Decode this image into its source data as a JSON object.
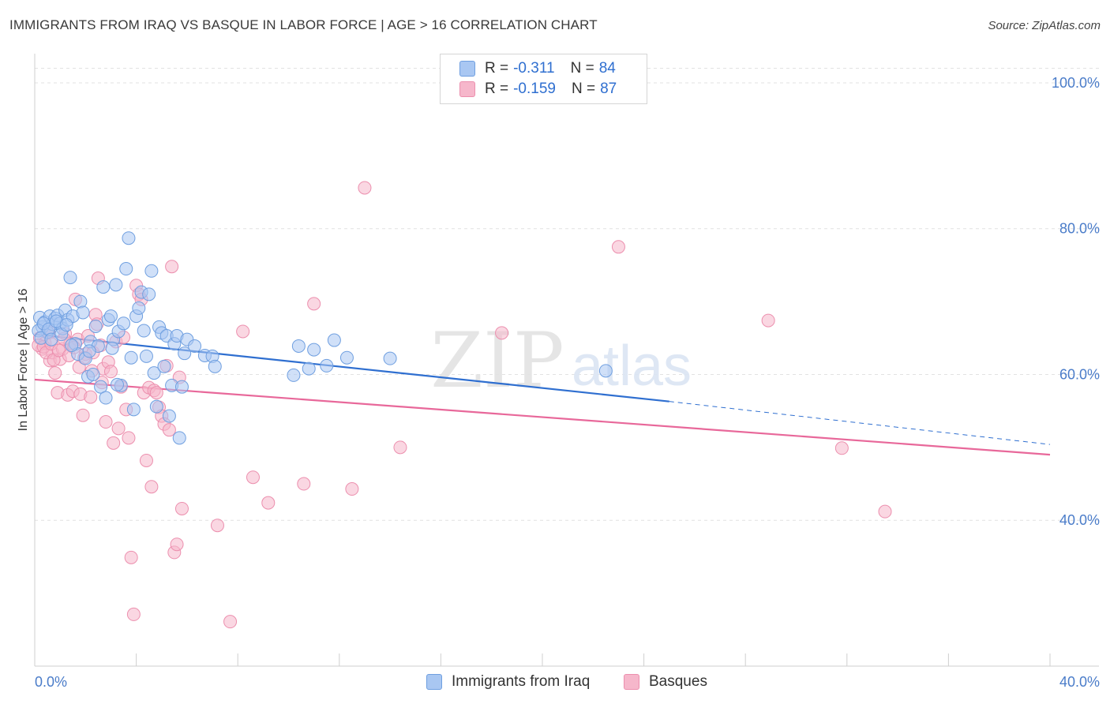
{
  "header": {
    "title": "IMMIGRANTS FROM IRAQ VS BASQUE IN LABOR FORCE | AGE > 16 CORRELATION CHART",
    "source": "Source: ZipAtlas.com"
  },
  "watermark": {
    "zip": "ZIP",
    "atlas": "atlas"
  },
  "legend": {
    "rows": [
      {
        "r_label": "R =",
        "r_value": "-0.311",
        "n_label": "N =",
        "n_value": "84",
        "color": "#a9c7f2"
      },
      {
        "r_label": "R =",
        "r_value": "-0.159",
        "n_label": "N =",
        "n_value": "87",
        "color": "#f6b7cb"
      }
    ]
  },
  "bottom_legend": {
    "series1": "Immigrants from Iraq",
    "series2": "Basques"
  },
  "colors": {
    "iraq_fill": "#a9c7f2",
    "iraq_stroke": "#6f9fe0",
    "iraq_line": "#2f6fd0",
    "basque_fill": "#f6b7cb",
    "basque_stroke": "#ec8fae",
    "basque_line": "#e8689a",
    "tick": "#4a7cc9",
    "grid": "#e2e2e2"
  },
  "chart_data": {
    "type": "scatter",
    "title": "IMMIGRANTS FROM IRAQ VS BASQUE IN LABOR FORCE | AGE > 16 CORRELATION CHART",
    "xlabel": "",
    "ylabel": "In Labor Force | Age > 16",
    "xlim": [
      0,
      40
    ],
    "ylim": [
      20,
      104
    ],
    "x_tick_labels": [
      {
        "value": 0,
        "label": "0.0%"
      },
      {
        "value": 40,
        "label": "40.0%"
      }
    ],
    "y_tick_labels": [
      {
        "value": 100,
        "label": "100.0%"
      },
      {
        "value": 80,
        "label": "80.0%"
      },
      {
        "value": 60,
        "label": "60.0%"
      },
      {
        "value": 40,
        "label": "40.0%"
      }
    ],
    "y_gridlines": [
      102,
      100,
      80,
      60,
      40
    ],
    "series": [
      {
        "name": "Immigrants from Iraq",
        "R": -0.311,
        "N": 84,
        "trend": {
          "x0": 0,
          "y0": 65.5,
          "x1": 25,
          "y1": 56.3,
          "dash_to_x": 40,
          "dash_to_y": 50.4
        },
        "points": [
          [
            0.2,
            67.8
          ],
          [
            0.3,
            66.5
          ],
          [
            0.4,
            67.2
          ],
          [
            0.5,
            65.8
          ],
          [
            0.6,
            68.0
          ],
          [
            0.7,
            66.9
          ],
          [
            0.8,
            67.7
          ],
          [
            0.9,
            68.1
          ],
          [
            1.0,
            67.0
          ],
          [
            1.1,
            66.3
          ],
          [
            1.2,
            68.8
          ],
          [
            1.3,
            67.5
          ],
          [
            1.4,
            73.3
          ],
          [
            1.5,
            68.0
          ],
          [
            1.6,
            64.2
          ],
          [
            1.7,
            62.8
          ],
          [
            1.8,
            70.0
          ],
          [
            1.9,
            68.5
          ],
          [
            2.0,
            62.2
          ],
          [
            2.1,
            59.7
          ],
          [
            2.2,
            64.5
          ],
          [
            2.3,
            60.0
          ],
          [
            2.4,
            66.6
          ],
          [
            2.5,
            63.9
          ],
          [
            2.6,
            58.3
          ],
          [
            2.7,
            72.0
          ],
          [
            2.8,
            56.8
          ],
          [
            2.9,
            67.5
          ],
          [
            3.0,
            68.0
          ],
          [
            3.1,
            64.8
          ],
          [
            3.2,
            72.3
          ],
          [
            3.3,
            65.9
          ],
          [
            3.4,
            58.5
          ],
          [
            3.5,
            67.0
          ],
          [
            3.6,
            74.5
          ],
          [
            3.7,
            78.7
          ],
          [
            3.8,
            62.3
          ],
          [
            3.9,
            55.2
          ],
          [
            4.0,
            68.0
          ],
          [
            4.1,
            69.1
          ],
          [
            4.2,
            71.3
          ],
          [
            4.3,
            66.0
          ],
          [
            4.4,
            62.5
          ],
          [
            4.5,
            71.0
          ],
          [
            4.6,
            74.2
          ],
          [
            4.7,
            60.2
          ],
          [
            4.8,
            55.6
          ],
          [
            4.9,
            66.5
          ],
          [
            5.0,
            65.7
          ],
          [
            5.1,
            61.1
          ],
          [
            5.2,
            65.3
          ],
          [
            5.3,
            54.3
          ],
          [
            5.4,
            58.5
          ],
          [
            5.5,
            64.2
          ],
          [
            5.6,
            65.3
          ],
          [
            5.7,
            51.3
          ],
          [
            5.8,
            58.3
          ],
          [
            5.9,
            62.9
          ],
          [
            6.0,
            64.8
          ],
          [
            6.3,
            63.9
          ],
          [
            6.7,
            62.6
          ],
          [
            7.0,
            62.5
          ],
          [
            7.1,
            61.1
          ],
          [
            10.2,
            59.9
          ],
          [
            10.4,
            63.9
          ],
          [
            10.8,
            60.8
          ],
          [
            11.0,
            63.4
          ],
          [
            11.5,
            61.2
          ],
          [
            11.8,
            64.7
          ],
          [
            12.3,
            62.3
          ],
          [
            14.0,
            62.2
          ],
          [
            22.5,
            60.5
          ],
          [
            0.15,
            66.0
          ],
          [
            0.25,
            65.0
          ],
          [
            0.35,
            67.0
          ],
          [
            0.55,
            66.2
          ],
          [
            0.65,
            64.8
          ],
          [
            0.85,
            67.3
          ],
          [
            1.05,
            65.5
          ],
          [
            1.25,
            66.8
          ],
          [
            1.45,
            64.0
          ],
          [
            2.15,
            63.2
          ],
          [
            3.05,
            63.6
          ],
          [
            3.25,
            58.6
          ]
        ]
      },
      {
        "name": "Basques",
        "R": -0.159,
        "N": 87,
        "trend": {
          "x0": 0,
          "y0": 59.3,
          "x1": 40,
          "y1": 49.0
        },
        "points": [
          [
            0.2,
            65.0
          ],
          [
            0.3,
            63.5
          ],
          [
            0.4,
            64.3
          ],
          [
            0.5,
            66.0
          ],
          [
            0.6,
            61.9
          ],
          [
            0.7,
            63.0
          ],
          [
            0.8,
            60.2
          ],
          [
            0.9,
            57.5
          ],
          [
            1.0,
            62.1
          ],
          [
            1.1,
            63.5
          ],
          [
            1.2,
            65.6
          ],
          [
            1.3,
            57.2
          ],
          [
            1.4,
            64.3
          ],
          [
            1.5,
            57.7
          ],
          [
            1.6,
            70.3
          ],
          [
            1.7,
            64.8
          ],
          [
            1.8,
            57.3
          ],
          [
            1.9,
            54.4
          ],
          [
            2.0,
            62.8
          ],
          [
            2.1,
            65.3
          ],
          [
            2.2,
            56.9
          ],
          [
            2.3,
            63.0
          ],
          [
            2.4,
            68.2
          ],
          [
            2.5,
            73.2
          ],
          [
            2.6,
            64.0
          ],
          [
            2.7,
            60.8
          ],
          [
            2.8,
            53.5
          ],
          [
            2.9,
            61.7
          ],
          [
            3.0,
            60.4
          ],
          [
            3.1,
            50.6
          ],
          [
            3.2,
            64.5
          ],
          [
            3.3,
            52.6
          ],
          [
            3.4,
            58.3
          ],
          [
            3.5,
            65.1
          ],
          [
            3.6,
            55.2
          ],
          [
            3.7,
            51.3
          ],
          [
            3.8,
            34.9
          ],
          [
            3.9,
            27.1
          ],
          [
            4.0,
            72.2
          ],
          [
            4.1,
            71.0
          ],
          [
            4.2,
            70.3
          ],
          [
            4.3,
            57.5
          ],
          [
            4.4,
            48.2
          ],
          [
            4.5,
            58.2
          ],
          [
            4.6,
            44.6
          ],
          [
            4.7,
            57.8
          ],
          [
            4.8,
            57.5
          ],
          [
            4.9,
            55.5
          ],
          [
            5.0,
            54.3
          ],
          [
            5.1,
            53.2
          ],
          [
            5.2,
            61.2
          ],
          [
            5.3,
            52.4
          ],
          [
            5.4,
            74.8
          ],
          [
            5.5,
            35.6
          ],
          [
            5.6,
            36.7
          ],
          [
            5.7,
            59.6
          ],
          [
            5.8,
            41.6
          ],
          [
            7.2,
            39.3
          ],
          [
            7.7,
            26.1
          ],
          [
            8.2,
            65.9
          ],
          [
            8.6,
            45.9
          ],
          [
            9.2,
            42.4
          ],
          [
            10.6,
            45.0
          ],
          [
            11.0,
            69.7
          ],
          [
            12.5,
            44.3
          ],
          [
            13.0,
            85.6
          ],
          [
            14.4,
            50.0
          ],
          [
            18.4,
            65.7
          ],
          [
            23.0,
            77.5
          ],
          [
            28.9,
            67.4
          ],
          [
            31.8,
            49.9
          ],
          [
            33.5,
            41.2
          ],
          [
            0.15,
            64.0
          ],
          [
            0.35,
            63.8
          ],
          [
            0.45,
            63.0
          ],
          [
            0.55,
            65.7
          ],
          [
            0.65,
            64.2
          ],
          [
            0.75,
            62.0
          ],
          [
            0.95,
            63.3
          ],
          [
            1.15,
            64.9
          ],
          [
            1.35,
            62.6
          ],
          [
            1.55,
            63.7
          ],
          [
            1.75,
            61.0
          ],
          [
            1.95,
            62.3
          ],
          [
            2.25,
            60.5
          ],
          [
            2.45,
            66.9
          ],
          [
            2.65,
            58.9
          ]
        ]
      }
    ]
  }
}
